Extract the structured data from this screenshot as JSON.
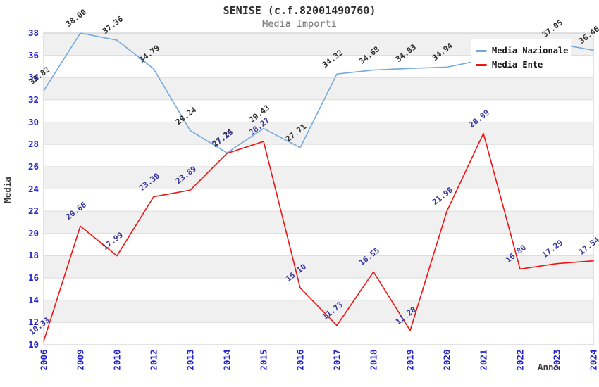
{
  "header": {
    "title": "SENISE (c.f.82001490760)",
    "subtitle": "Media Importi"
  },
  "legend": {
    "items": [
      {
        "label": "Media Nazionale",
        "color": "#74a9de"
      },
      {
        "label": "Media Ente",
        "color": "#ee1414"
      }
    ]
  },
  "axes": {
    "y_title": "Media",
    "x_title": "Anno",
    "y_ticks": [
      10,
      12,
      14,
      16,
      18,
      20,
      22,
      24,
      26,
      28,
      30,
      32,
      34,
      36,
      38
    ],
    "tick_color": "#2424cf"
  },
  "chart_data": {
    "type": "line",
    "title": "SENISE (c.f.82001490760)",
    "subtitle": "Media Importi",
    "xlabel": "Anno",
    "ylabel": "Media",
    "ylim": [
      10,
      38
    ],
    "grid": true,
    "legend_position": "top-right",
    "band_colors": [
      "#ffffff",
      "#f0f0f0"
    ],
    "gridline_color": "#dcdcdc",
    "border_color": "#c6c6c6",
    "categories": [
      "2006",
      "2009",
      "2010",
      "2012",
      "2013",
      "2014",
      "2015",
      "2016",
      "2017",
      "2018",
      "2019",
      "2020",
      "2021",
      "2022",
      "2023",
      "2024"
    ],
    "series": [
      {
        "name": "Media Nazionale",
        "color": "#74a9de",
        "label_color": "#2e2e2e",
        "values": [
          32.82,
          38.0,
          37.36,
          34.79,
          29.24,
          27.24,
          29.43,
          27.71,
          34.32,
          34.68,
          34.83,
          34.94,
          35.6,
          36.3,
          37.05,
          36.46
        ],
        "labels": [
          "32.82",
          "38.00",
          "37.36",
          "34.79",
          "29.24",
          "27.24",
          "29.43",
          "27.71",
          "34.32",
          "34.68",
          "34.83",
          "34.94",
          "",
          "",
          "37.05",
          "36.46"
        ]
      },
      {
        "name": "Media Ente",
        "color": "#ee1414",
        "label_color": "#38389e",
        "values": [
          10.33,
          20.66,
          17.99,
          23.3,
          23.89,
          27.19,
          28.27,
          15.1,
          11.73,
          16.55,
          11.28,
          21.98,
          28.99,
          16.8,
          17.29,
          17.54
        ],
        "labels": [
          "10.33",
          "20.66",
          "17.99",
          "23.30",
          "23.89",
          "27.19",
          "28.27",
          "15.10",
          "11.73",
          "16.55",
          "11.28",
          "21.98",
          "28.99",
          "16.80",
          "17.29",
          "17.54"
        ]
      }
    ]
  }
}
